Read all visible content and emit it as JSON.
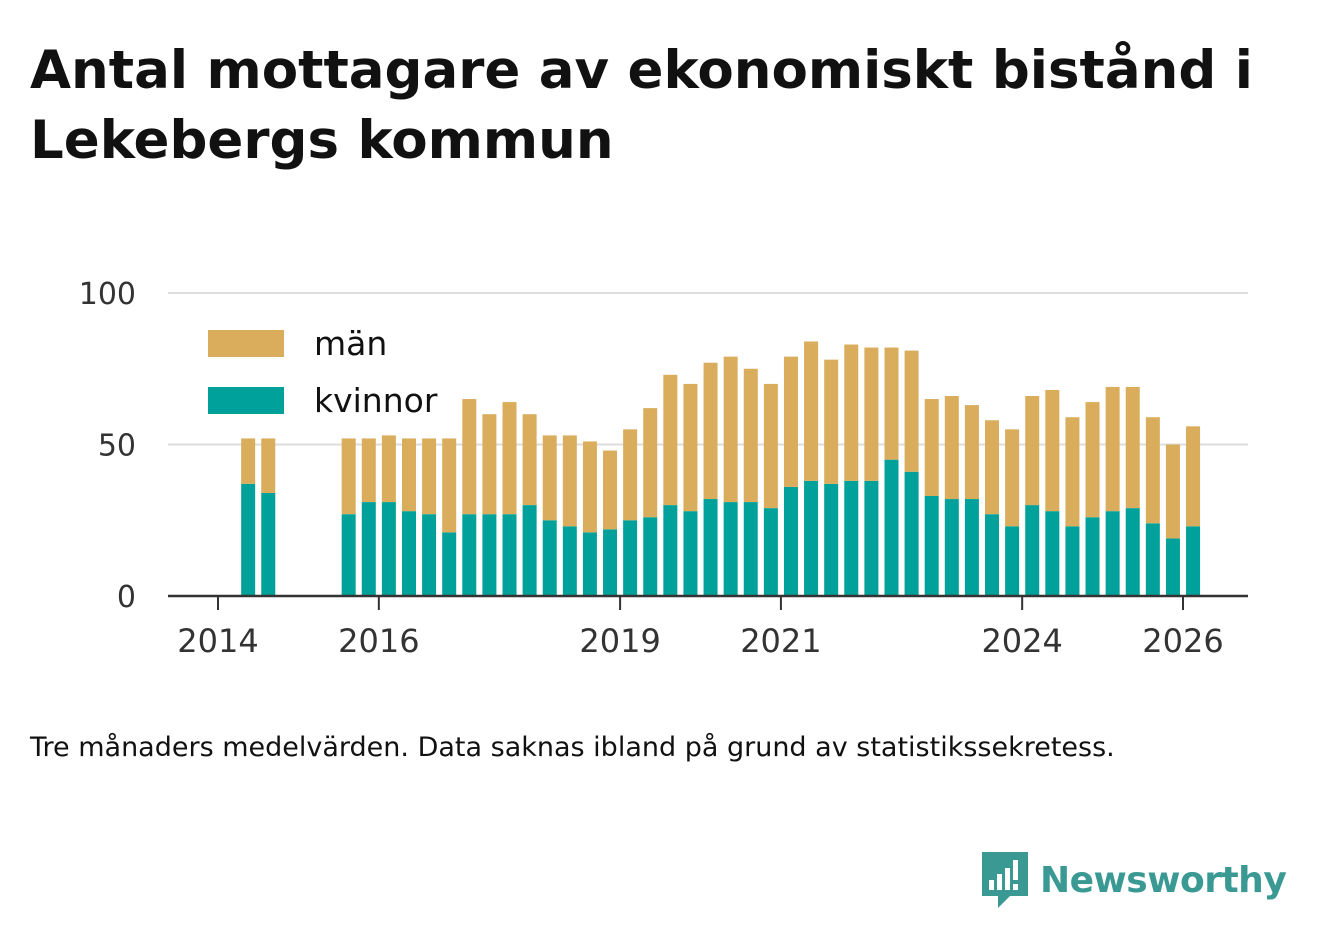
{
  "title": "Antal mottagare av ekonomiskt bistånd i Lekebergs kommun",
  "note": "Tre månaders medelvärden. Data saknas ibland på grund av statistikssekretess.",
  "brand": {
    "name": "Newsworthy",
    "icon": "newsworthy-logo-icon"
  },
  "colors": {
    "men": "#d9ad5c",
    "women": "#00a19a",
    "grid": "#dddddd",
    "axis": "#333333",
    "faded": "#f6eedc"
  },
  "chart_data": {
    "type": "bar",
    "stacked": true,
    "title": "Antal mottagare av ekonomiskt bistånd i Lekebergs kommun",
    "xlabel": "",
    "ylabel": "",
    "ylim": [
      0,
      100
    ],
    "yticks": [
      0,
      50,
      100
    ],
    "xticks": [
      "2014",
      "2016",
      "2019",
      "2021",
      "2024",
      "2026"
    ],
    "grid": true,
    "legend": "top-left",
    "series": [
      {
        "name": "män",
        "color": "#d9ad5c"
      },
      {
        "name": "kvinnor",
        "color": "#00a19a"
      }
    ],
    "quarters": [
      "2014-Q2",
      "2014-Q3",
      "2015-Q3",
      "2015-Q4",
      "2016-Q1",
      "2016-Q2",
      "2016-Q3",
      "2016-Q4",
      "2017-Q1",
      "2017-Q2",
      "2017-Q3",
      "2017-Q4",
      "2018-Q1",
      "2018-Q2",
      "2018-Q3",
      "2018-Q4",
      "2019-Q1",
      "2019-Q2",
      "2019-Q3",
      "2019-Q4",
      "2020-Q1",
      "2020-Q2",
      "2020-Q3",
      "2020-Q4",
      "2021-Q1",
      "2021-Q2",
      "2021-Q3",
      "2021-Q4",
      "2022-Q1",
      "2022-Q2",
      "2022-Q3",
      "2022-Q4",
      "2023-Q1",
      "2023-Q2",
      "2023-Q3",
      "2023-Q4",
      "2024-Q1",
      "2024-Q2",
      "2024-Q3",
      "2024-Q4",
      "2025-Q1",
      "2025-Q2",
      "2025-Q3",
      "2025-Q4",
      "2026-Q1"
    ],
    "kvinnor": [
      37,
      34,
      27,
      31,
      31,
      28,
      27,
      21,
      27,
      27,
      27,
      30,
      25,
      23,
      21,
      22,
      25,
      26,
      30,
      28,
      32,
      31,
      31,
      29,
      36,
      38,
      37,
      38,
      38,
      45,
      41,
      33,
      32,
      32,
      27,
      23,
      30,
      28,
      23,
      26,
      28,
      29,
      24,
      19,
      23
    ],
    "man": [
      15,
      18,
      25,
      21,
      22,
      24,
      25,
      31,
      38,
      33,
      37,
      30,
      28,
      30,
      30,
      26,
      30,
      36,
      43,
      42,
      45,
      48,
      44,
      41,
      43,
      46,
      41,
      45,
      44,
      37,
      40,
      32,
      34,
      31,
      31,
      32,
      36,
      40,
      36,
      38,
      41,
      40,
      35,
      31,
      33
    ],
    "total": [
      52,
      52,
      52,
      52,
      53,
      52,
      52,
      52,
      65,
      60,
      64,
      60,
      53,
      53,
      51,
      48,
      55,
      62,
      73,
      70,
      77,
      79,
      75,
      70,
      79,
      84,
      78,
      83,
      82,
      82,
      81,
      65,
      66,
      63,
      58,
      55,
      66,
      68,
      59,
      64,
      69,
      69,
      59,
      50,
      56
    ]
  }
}
